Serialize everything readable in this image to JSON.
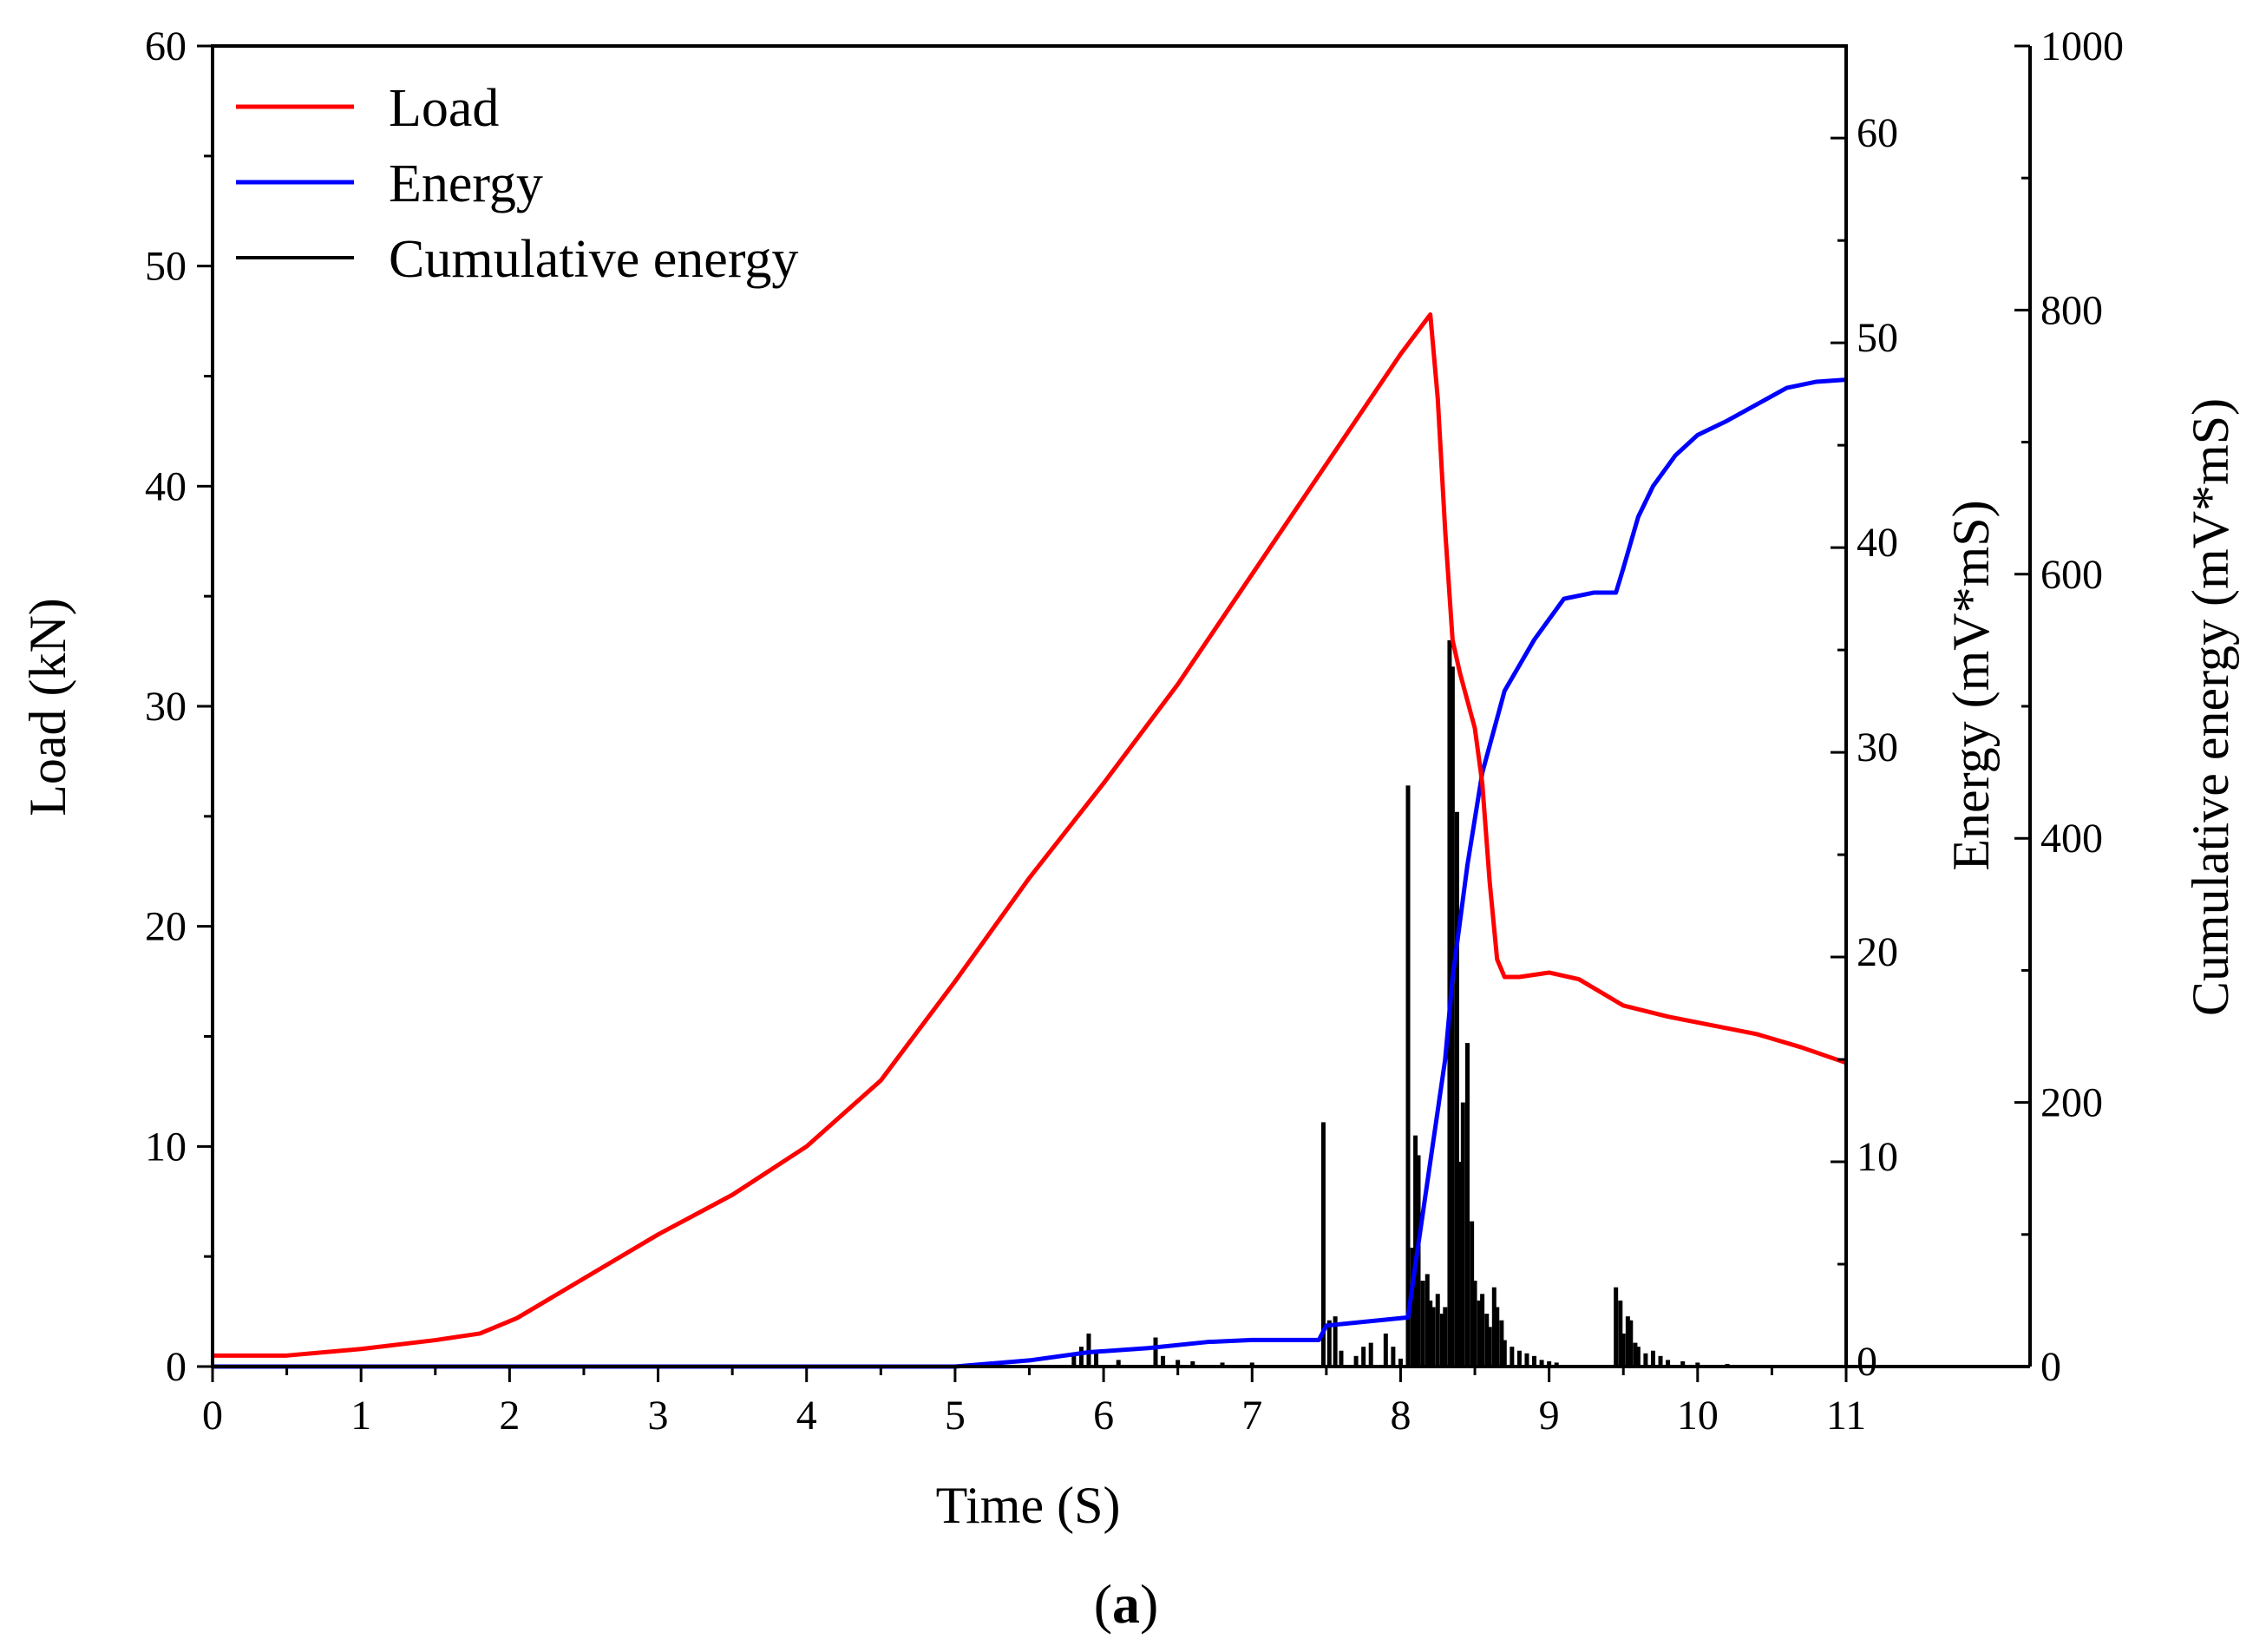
{
  "chart_data": {
    "type": "line",
    "title": "",
    "caption": {
      "open": "(",
      "letter": "a",
      "close": ")"
    },
    "xlabel": "Time (S)",
    "xlim": [
      0,
      11
    ],
    "xticks": [
      "0",
      "1",
      "2",
      "3",
      "4",
      "5",
      "6",
      "7",
      "8",
      "9",
      "10",
      "11"
    ],
    "y_left": {
      "label": "Load (kN)",
      "lim": [
        0,
        60
      ],
      "ticks": [
        "0",
        "10",
        "20",
        "30",
        "40",
        "50",
        "60"
      ]
    },
    "y_right1": {
      "label": "Energy (mV*mS)",
      "lim": [
        0,
        64.5
      ],
      "ticks": [
        "0",
        "10",
        "20",
        "30",
        "40",
        "50",
        "60"
      ]
    },
    "y_right2": {
      "label": "Cumulative energy (mV*mS)",
      "lim": [
        0,
        1000
      ],
      "ticks": [
        "0",
        "200",
        "400",
        "600",
        "800",
        "1000"
      ]
    },
    "legend": [
      {
        "label": "Load",
        "color": "#ff0000"
      },
      {
        "label": "Energy",
        "color": "#0000ff"
      },
      {
        "label": "Cumulative energy",
        "color": "#000000"
      }
    ],
    "series": [
      {
        "name": "Load",
        "color": "#ff0000",
        "axis": "left",
        "x": [
          0,
          0.5,
          1,
          1.5,
          1.8,
          2.05,
          2.5,
          3,
          3.5,
          4,
          4.5,
          5,
          5.5,
          6,
          6.5,
          7,
          7.5,
          8,
          8.2,
          8.25,
          8.3,
          8.35,
          8.4,
          8.5,
          8.55,
          8.6,
          8.65,
          8.7,
          8.8,
          9.0,
          9.2,
          9.5,
          9.8,
          10.1,
          10.4,
          10.7,
          11.0
        ],
        "y": [
          0.5,
          0.5,
          0.8,
          1.2,
          1.5,
          2.2,
          4.0,
          6.0,
          7.8,
          10.0,
          13.0,
          17.5,
          22.2,
          26.5,
          31.0,
          36.0,
          41.0,
          46.0,
          47.8,
          44.0,
          38.0,
          33.0,
          31.5,
          29.0,
          26.5,
          22.0,
          18.5,
          17.7,
          17.7,
          17.9,
          17.6,
          16.4,
          15.9,
          15.5,
          15.1,
          14.5,
          13.8
        ]
      },
      {
        "name": "Energy",
        "color": "#0000ff",
        "axis": "right1",
        "x": [
          0,
          5,
          5.5,
          5.9,
          6.3,
          6.7,
          7.0,
          7.45,
          7.5,
          8.05,
          8.1,
          8.2,
          8.3,
          8.35,
          8.45,
          8.55,
          8.7,
          8.9,
          9.1,
          9.3,
          9.45,
          9.5,
          9.6,
          9.7,
          9.85,
          10.0,
          10.2,
          10.4,
          10.6,
          10.8,
          11.0
        ],
        "y": [
          0,
          0,
          0.3,
          0.7,
          0.9,
          1.2,
          1.3,
          1.3,
          2.0,
          2.4,
          5.0,
          10.0,
          15.0,
          19.0,
          24.5,
          29.0,
          33.0,
          35.5,
          37.5,
          37.8,
          37.8,
          39.0,
          41.5,
          43.0,
          44.5,
          45.5,
          46.2,
          47.0,
          47.8,
          48.1,
          48.2
        ]
      },
      {
        "name": "Cumulative energy",
        "color": "#000000",
        "axis": "right2",
        "style": "bars",
        "x": [
          5.8,
          5.85,
          5.9,
          5.95,
          6.1,
          6.35,
          6.4,
          6.5,
          6.6,
          6.8,
          7.0,
          7.48,
          7.52,
          7.56,
          7.6,
          7.7,
          7.75,
          7.8,
          7.9,
          7.95,
          8.0,
          8.05,
          8.08,
          8.1,
          8.12,
          8.15,
          8.18,
          8.2,
          8.22,
          8.25,
          8.28,
          8.3,
          8.33,
          8.35,
          8.38,
          8.4,
          8.42,
          8.45,
          8.48,
          8.5,
          8.53,
          8.55,
          8.58,
          8.6,
          8.63,
          8.65,
          8.68,
          8.7,
          8.75,
          8.8,
          8.85,
          8.9,
          8.95,
          9.0,
          9.05,
          9.45,
          9.48,
          9.5,
          9.53,
          9.55,
          9.58,
          9.6,
          9.65,
          9.7,
          9.75,
          9.8,
          9.9,
          10.0,
          10.2,
          10.4
        ],
        "y": [
          10,
          15,
          25,
          10,
          5,
          22,
          8,
          5,
          4,
          3,
          3,
          185,
          35,
          38,
          12,
          8,
          15,
          18,
          25,
          15,
          6,
          440,
          90,
          175,
          160,
          65,
          70,
          50,
          45,
          55,
          40,
          45,
          550,
          530,
          420,
          155,
          200,
          245,
          110,
          65,
          50,
          55,
          40,
          30,
          60,
          45,
          35,
          20,
          15,
          12,
          10,
          8,
          5,
          4,
          3,
          60,
          50,
          25,
          38,
          35,
          18,
          15,
          10,
          12,
          8,
          5,
          4,
          3,
          2,
          1
        ]
      }
    ]
  }
}
